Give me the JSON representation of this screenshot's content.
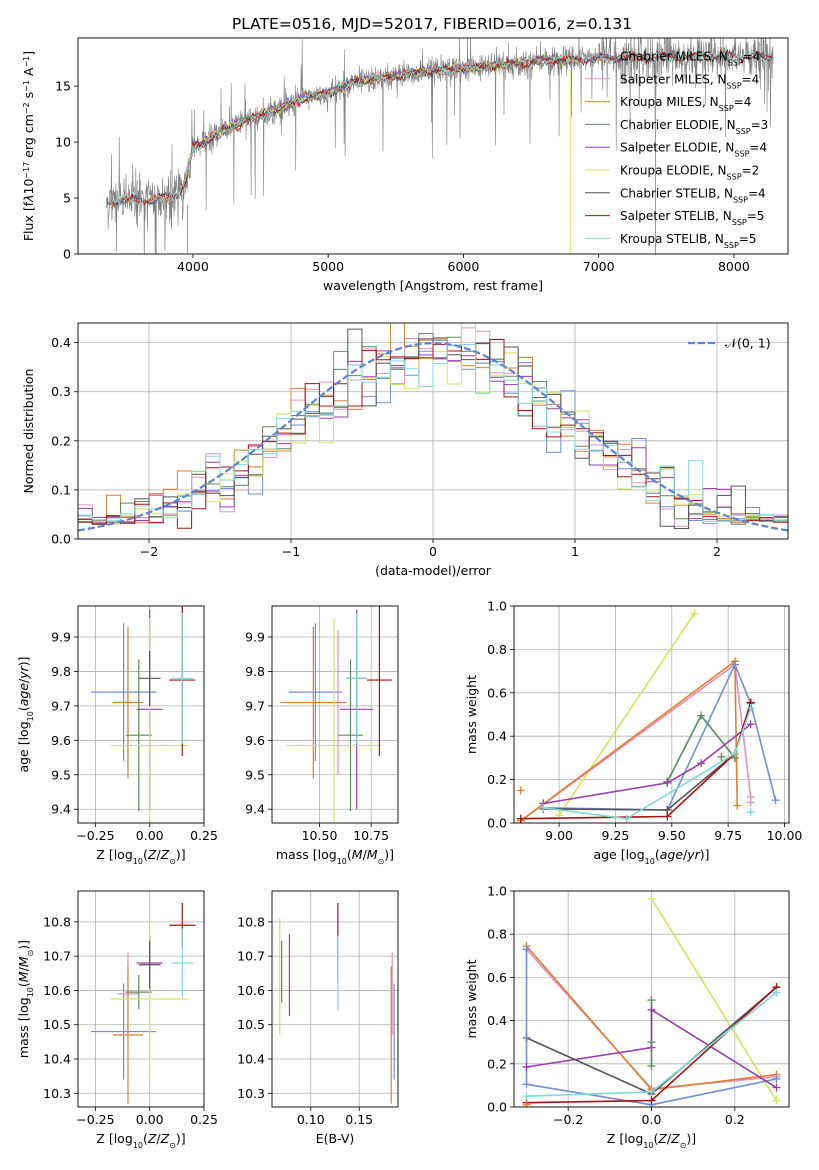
{
  "figure_title": "PLATE=0516, MJD=52017, FIBERID=0016, z=0.131",
  "colors": {
    "Chabrier MILES": "#6f8fd8",
    "Salpeter MILES": "#e68fc0",
    "Kroupa MILES": "#e07f2c",
    "Chabrier ELODIE": "#5a8a5f",
    "Salpeter ELODIE": "#9b3db0",
    "Kroupa ELODIE": "#d7e35a",
    "Chabrier STELIB": "#555555",
    "Salpeter STELIB": "#aa1111",
    "Kroupa STELIB": "#7fd9d9",
    "data": "#808080",
    "normal": "#5b84d6"
  },
  "chart_data": [
    {
      "id": "spectrum",
      "type": "line",
      "title": "PLATE=0516, MJD=52017, FIBERID=0016, z=0.131",
      "xlabel": "wavelength [Angstrom, rest frame]",
      "ylabel_html": "Flux [f<tspan font-style='italic'>λ</tspan>10<tspan baseline-shift='super' font-size='8'>−17</tspan> erg cm<tspan baseline-shift='super' font-size='8'>−2</tspan> s<tspan baseline-shift='super' font-size='8'>−1</tspan> A<tspan baseline-shift='super' font-size='8'>−1</tspan>]",
      "xlim": [
        3150,
        8400
      ],
      "ylim": [
        0,
        19.3
      ],
      "xticks": [
        4000,
        5000,
        6000,
        7000,
        8000
      ],
      "yticks": [
        0,
        5,
        10,
        15
      ],
      "x_data_range": [
        3360,
        8290
      ],
      "continuum": [
        [
          3360,
          4.6
        ],
        [
          3500,
          4.9
        ],
        [
          3700,
          4.8
        ],
        [
          3900,
          5.4
        ],
        [
          3950,
          6.5
        ],
        [
          4000,
          9.5
        ],
        [
          4200,
          10.8
        ],
        [
          4400,
          12.0
        ],
        [
          4600,
          12.8
        ],
        [
          4800,
          13.8
        ],
        [
          5000,
          14.4
        ],
        [
          5200,
          15.4
        ],
        [
          5500,
          15.9
        ],
        [
          5800,
          16.4
        ],
        [
          6000,
          16.6
        ],
        [
          6300,
          16.9
        ],
        [
          6600,
          17.3
        ],
        [
          7000,
          17.5
        ],
        [
          7500,
          17.6
        ],
        [
          8000,
          17.7
        ],
        [
          8290,
          17.6
        ]
      ],
      "legend": [
        {
          "label": "Chabrier MILES, N<tspan font-size='8' baseline-shift='sub'>SSP</tspan>=4",
          "color_key": "Chabrier MILES"
        },
        {
          "label": "Salpeter MILES, N<tspan font-size='8' baseline-shift='sub'>SSP</tspan>=4",
          "color_key": "Salpeter MILES"
        },
        {
          "label": "Kroupa MILES, N<tspan font-size='8' baseline-shift='sub'>SSP</tspan>=4",
          "color_key": "Kroupa MILES"
        },
        {
          "label": "Chabrier ELODIE, N<tspan font-size='8' baseline-shift='sub'>SSP</tspan>=3",
          "color_key": "Chabrier ELODIE"
        },
        {
          "label": "Salpeter ELODIE, N<tspan font-size='8' baseline-shift='sub'>SSP</tspan>=4",
          "color_key": "Salpeter ELODIE"
        },
        {
          "label": "Kroupa ELODIE, N<tspan font-size='8' baseline-shift='sub'>SSP</tspan>=2",
          "color_key": "Kroupa ELODIE"
        },
        {
          "label": "Chabrier STELIB, N<tspan font-size='8' baseline-shift='sub'>SSP</tspan>=4",
          "color_key": "Chabrier STELIB"
        },
        {
          "label": "Salpeter STELIB, N<tspan font-size='8' baseline-shift='sub'>SSP</tspan>=5",
          "color_key": "Salpeter STELIB"
        },
        {
          "label": "Kroupa STELIB, N<tspan font-size='8' baseline-shift='sub'>SSP</tspan>=5",
          "color_key": "Kroupa STELIB"
        }
      ],
      "model_ranges": {
        "Chabrier MILES": [
          3360,
          7420
        ],
        "Salpeter MILES": [
          3360,
          7420
        ],
        "Kroupa MILES": [
          3360,
          7420
        ],
        "Chabrier ELODIE": [
          3900,
          6800
        ],
        "Salpeter ELODIE": [
          3900,
          6800
        ],
        "Kroupa ELODIE": [
          3900,
          6800
        ],
        "Chabrier STELIB": [
          3360,
          8290
        ],
        "Salpeter STELIB": [
          3360,
          8290
        ],
        "Kroupa STELIB": [
          3360,
          8290
        ]
      }
    },
    {
      "id": "residuals",
      "type": "histogram",
      "xlabel": "(data-model)/error",
      "ylabel": "Normed distribution",
      "xlim": [
        -2.5,
        2.5
      ],
      "ylim": [
        0,
        0.44
      ],
      "xticks": [
        -2,
        -1,
        0,
        1,
        2
      ],
      "yticks": [
        0.0,
        0.1,
        0.2,
        0.3,
        0.4
      ],
      "bin_width": 0.1,
      "normal_curve_label": "𝒩(0, 1)",
      "grid": true
    },
    {
      "id": "z_vs_age",
      "type": "scatter",
      "xlabel_html": "Z [log<tspan font-size='8' baseline-shift='sub'>10</tspan>(<tspan font-style='italic'>Z</tspan>/<tspan font-style='italic'>Z</tspan><tspan font-size='8' baseline-shift='sub'>⊙</tspan>)]",
      "ylabel_html": "age  [log<tspan font-size='8' baseline-shift='sub'>10</tspan>(<tspan font-style='italic'>age</tspan>/<tspan font-style='italic'>yr</tspan>)]",
      "xlim": [
        -0.33,
        0.25
      ],
      "ylim": [
        9.36,
        9.99
      ],
      "xticks": [
        -0.25,
        0.0,
        0.25
      ],
      "yticks": [
        9.4,
        9.5,
        9.6,
        9.7,
        9.8,
        9.9
      ],
      "points": [
        {
          "k": "Chabrier MILES",
          "x": -0.12,
          "xe": 0.15,
          "y": 9.74,
          "ye": 0.2
        },
        {
          "k": "Salpeter MILES",
          "x": -0.1,
          "xe": 0.05,
          "y": 9.71,
          "ye": 0.21
        },
        {
          "k": "Kroupa MILES",
          "x": -0.1,
          "xe": 0.07,
          "y": 9.71,
          "ye": 0.22
        },
        {
          "k": "Chabrier ELODIE",
          "x": -0.05,
          "xe": 0.06,
          "y": 9.615,
          "ye": 0.22
        },
        {
          "k": "Salpeter ELODIE",
          "x": 0.0,
          "xe": 0.06,
          "y": 9.69,
          "ye": 0.29
        },
        {
          "k": "Kroupa ELODIE",
          "x": 0.0,
          "xe": 0.18,
          "y": 9.585,
          "ye": 0.37
        },
        {
          "k": "Chabrier STELIB",
          "x": 0.0,
          "xe": 0.05,
          "y": 9.78,
          "ye": 0.08
        },
        {
          "k": "Salpeter STELIB",
          "x": 0.15,
          "xe": 0.06,
          "y": 9.775,
          "ye": 0.22
        },
        {
          "k": "Kroupa STELIB",
          "x": 0.15,
          "xe": 0.05,
          "y": 9.78,
          "ye": 0.19
        }
      ]
    },
    {
      "id": "mass_vs_age",
      "type": "scatter",
      "xlabel_html": "mass [log<tspan font-size='8' baseline-shift='sub'>10</tspan>(<tspan font-style='italic'>M</tspan>/<tspan font-style='italic'>M</tspan><tspan font-size='8' baseline-shift='sub'>⊙</tspan>)]",
      "xlim": [
        10.27,
        10.88
      ],
      "ylim": [
        9.36,
        9.99
      ],
      "xticks": [
        10.5,
        10.75
      ],
      "yticks": [
        9.4,
        9.5,
        9.6,
        9.7,
        9.8,
        9.9
      ],
      "points": [
        {
          "k": "Chabrier MILES",
          "x": 10.48,
          "xe": 0.13,
          "y": 9.74,
          "ye": 0.2
        },
        {
          "k": "Salpeter MILES",
          "x": 10.59,
          "xe": 0.04,
          "y": 9.71,
          "ye": 0.21
        },
        {
          "k": "Kroupa MILES",
          "x": 10.47,
          "xe": 0.16,
          "y": 9.71,
          "ye": 0.22
        },
        {
          "k": "Chabrier ELODIE",
          "x": 10.65,
          "xe": 0.06,
          "y": 9.615,
          "ye": 0.22
        },
        {
          "k": "Salpeter ELODIE",
          "x": 10.68,
          "xe": 0.08,
          "y": 9.69,
          "ye": 0.29
        },
        {
          "k": "Kroupa ELODIE",
          "x": 10.57,
          "xe": 0.23,
          "y": 9.585,
          "ye": 0.37
        },
        {
          "k": "Chabrier STELIB",
          "x": 10.68,
          "xe": 0.05,
          "y": 9.78,
          "ye": 0.08
        },
        {
          "k": "Salpeter STELIB",
          "x": 10.79,
          "xe": 0.06,
          "y": 9.775,
          "ye": 0.22
        },
        {
          "k": "Kroupa STELIB",
          "x": 10.68,
          "xe": 0.05,
          "y": 9.78,
          "ye": 0.19
        }
      ]
    },
    {
      "id": "age_weights",
      "type": "line",
      "xlabel_html": "age  [log<tspan font-size='8' baseline-shift='sub'>10</tspan>(<tspan font-style='italic'>age</tspan>/<tspan font-style='italic'>yr</tspan>)]",
      "ylabel": "mass weight",
      "xlim": [
        8.8,
        10.02
      ],
      "ylim": [
        0,
        1.0
      ],
      "xticks": [
        9.0,
        9.25,
        9.5,
        9.75,
        10.0
      ],
      "yticks": [
        0.0,
        0.2,
        0.4,
        0.6,
        0.8,
        1.0
      ],
      "series": [
        {
          "k": "Kroupa ELODIE",
          "x": [
            9.0,
            9.6
          ],
          "y": [
            0.035,
            0.965
          ]
        },
        {
          "k": "Salpeter MILES",
          "x": [
            8.83,
            9.78,
            9.85
          ],
          "y": [
            0.01,
            0.73,
            0.12
          ]
        },
        {
          "k": "Kroupa MILES",
          "x": [
            8.83,
            9.78,
            9.79
          ],
          "y": [
            0.01,
            0.745,
            0.08
          ]
        },
        {
          "k": "Chabrier MILES",
          "x": [
            8.93,
            9.48,
            9.78,
            9.85,
            9.96
          ],
          "y": [
            0.07,
            0.06,
            0.73,
            0.55,
            0.105
          ]
        },
        {
          "k": "Chabrier ELODIE",
          "x": [
            9.48,
            9.63,
            9.78
          ],
          "y": [
            0.19,
            0.495,
            0.3
          ]
        },
        {
          "k": "Salpeter ELODIE",
          "x": [
            8.93,
            9.48,
            9.63,
            9.85
          ],
          "y": [
            0.09,
            0.185,
            0.275,
            0.455
          ]
        },
        {
          "k": "Chabrier STELIB",
          "x": [
            8.93,
            9.48,
            9.78,
            9.85
          ],
          "y": [
            0.065,
            0.06,
            0.32,
            0.555
          ]
        },
        {
          "k": "Salpeter STELIB",
          "x": [
            8.83,
            9.48,
            9.78,
            9.85
          ],
          "y": [
            0.02,
            0.03,
            0.32,
            0.555
          ]
        },
        {
          "k": "Kroupa STELIB",
          "x": [
            8.93,
            9.3,
            9.78,
            9.85
          ],
          "y": [
            0.07,
            0.02,
            0.32,
            0.53
          ]
        }
      ],
      "extra_marks": [
        {
          "k": "Kroupa MILES",
          "x": 8.83,
          "y": 0.15
        },
        {
          "k": "Kroupa STELIB",
          "x": 9.85,
          "y": 0.05
        },
        {
          "k": "Salpeter MILES",
          "x": 9.85,
          "y": 0.095
        },
        {
          "k": "Chabrier ELODIE",
          "x": 9.72,
          "y": 0.305
        }
      ]
    },
    {
      "id": "z_mass",
      "type": "scatter",
      "xlabel_html": "Z [log<tspan font-size='8' baseline-shift='sub'>10</tspan>(<tspan font-style='italic'>Z</tspan>/<tspan font-style='italic'>Z</tspan><tspan font-size='8' baseline-shift='sub'>⊙</tspan>)]",
      "ylabel_html": "mass [log<tspan font-size='8' baseline-shift='sub'>10</tspan>(<tspan font-style='italic'>M</tspan>/<tspan font-style='italic'>M</tspan><tspan font-size='8' baseline-shift='sub'>⊙</tspan>)]",
      "xlim": [
        -0.33,
        0.25
      ],
      "ylim": [
        10.26,
        10.89
      ],
      "xticks": [
        -0.25,
        0.0,
        0.25
      ],
      "yticks": [
        10.3,
        10.4,
        10.5,
        10.6,
        10.7,
        10.8
      ],
      "points": [
        {
          "k": "Chabrier MILES",
          "x": -0.12,
          "xe": 0.15,
          "y": 10.48,
          "ye": 0.14
        },
        {
          "k": "Salpeter MILES",
          "x": -0.1,
          "xe": 0.05,
          "y": 10.59,
          "ye": 0.12
        },
        {
          "k": "Kroupa MILES",
          "x": -0.1,
          "xe": 0.07,
          "y": 10.47,
          "ye": 0.2
        },
        {
          "k": "Chabrier ELODIE",
          "x": -0.05,
          "xe": 0.06,
          "y": 10.595,
          "ye": 0.05
        },
        {
          "k": "Salpeter ELODIE",
          "x": 0.0,
          "xe": 0.06,
          "y": 10.68,
          "ye": 0.08
        },
        {
          "k": "Kroupa ELODIE",
          "x": 0.0,
          "xe": 0.18,
          "y": 10.575,
          "ye": 0.23
        },
        {
          "k": "Chabrier STELIB",
          "x": 0.0,
          "xe": 0.05,
          "y": 10.675,
          "ye": 0.07
        },
        {
          "k": "Salpeter STELIB",
          "x": 0.15,
          "xe": 0.06,
          "y": 10.79,
          "ye": 0.065
        },
        {
          "k": "Kroupa STELIB",
          "x": 0.15,
          "xe": 0.05,
          "y": 10.68,
          "ye": 0.1
        }
      ]
    },
    {
      "id": "ebv_mass",
      "type": "scatter",
      "xlabel": "E(B-V)",
      "xlim": [
        0.06,
        0.19
      ],
      "ylim": [
        10.26,
        10.89
      ],
      "xticks": [
        0.1,
        0.15
      ],
      "yticks": [
        10.3,
        10.4,
        10.5,
        10.6,
        10.7,
        10.8
      ],
      "points": [
        {
          "k": "Chabrier MILES",
          "x": 0.186,
          "y": 10.48,
          "ye": 0.14
        },
        {
          "k": "Salpeter MILES",
          "x": 0.184,
          "y": 10.59,
          "ye": 0.12
        },
        {
          "k": "Kroupa MILES",
          "x": 0.183,
          "y": 10.47,
          "ye": 0.2
        },
        {
          "k": "Chabrier ELODIE",
          "x": 0.07,
          "y": 10.655,
          "ye": 0.09
        },
        {
          "k": "Salpeter ELODIE",
          "x": 0.078,
          "y": 10.645,
          "ye": 0.12
        },
        {
          "k": "Kroupa ELODIE",
          "x": 0.068,
          "y": 10.64,
          "ye": 0.17
        },
        {
          "k": "Chabrier STELIB",
          "x": 0.128,
          "y": 10.695,
          "ye": 0.065
        },
        {
          "k": "Salpeter STELIB",
          "x": 0.128,
          "y": 10.78,
          "ye": 0.075
        },
        {
          "k": "Kroupa STELIB",
          "x": 0.128,
          "y": 10.65,
          "ye": 0.11
        }
      ]
    },
    {
      "id": "z_weights",
      "type": "line",
      "xlabel_html": "Z [log<tspan font-size='8' baseline-shift='sub'>10</tspan>(<tspan font-style='italic'>Z</tspan>/<tspan font-style='italic'>Z</tspan><tspan font-size='8' baseline-shift='sub'>⊙</tspan>)]",
      "ylabel": "mass weight",
      "xlim": [
        -0.33,
        0.33
      ],
      "ylim": [
        0,
        1.0
      ],
      "xticks": [
        -0.2,
        0.0,
        0.2
      ],
      "yticks": [
        0.0,
        0.2,
        0.4,
        0.6,
        0.8,
        1.0
      ],
      "series": [
        {
          "k": "Kroupa ELODIE",
          "x": [
            0.0,
            0.3
          ],
          "y": [
            0.965,
            0.03
          ]
        },
        {
          "k": "Salpeter MILES",
          "x": [
            -0.3,
            0.0,
            0.3
          ],
          "y": [
            0.73,
            0.085,
            0.14
          ]
        },
        {
          "k": "Kroupa MILES",
          "x": [
            -0.3,
            0.0,
            0.3
          ],
          "y": [
            0.745,
            0.08,
            0.15
          ]
        },
        {
          "k": "Chabrier MILES",
          "x": [
            -0.3,
            -0.3,
            0.0,
            0.3
          ],
          "y": [
            0.73,
            0.105,
            0.01,
            0.13
          ]
        },
        {
          "k": "Chabrier ELODIE",
          "x": [
            0.0,
            0.0
          ],
          "y": [
            0.19,
            0.495
          ]
        },
        {
          "k": "Salpeter ELODIE",
          "x": [
            -0.3,
            0.0,
            0.0,
            0.3
          ],
          "y": [
            0.185,
            0.275,
            0.45,
            0.09
          ]
        },
        {
          "k": "Chabrier STELIB",
          "x": [
            -0.3,
            0.0,
            0.3
          ],
          "y": [
            0.32,
            0.06,
            0.555
          ]
        },
        {
          "k": "Salpeter STELIB",
          "x": [
            -0.3,
            0.0,
            0.3
          ],
          "y": [
            0.02,
            0.03,
            0.555
          ]
        },
        {
          "k": "Kroupa STELIB",
          "x": [
            -0.3,
            0.0,
            0.3
          ],
          "y": [
            0.05,
            0.07,
            0.53
          ]
        }
      ],
      "extra_marks": [
        {
          "k": "Chabrier ELODIE",
          "x": 0.0,
          "y": 0.3
        },
        {
          "k": "Kroupa MILES",
          "x": -0.3,
          "y": 0.01
        },
        {
          "k": "Chabrier MILES",
          "x": -0.3,
          "y": 0.32
        }
      ]
    }
  ]
}
